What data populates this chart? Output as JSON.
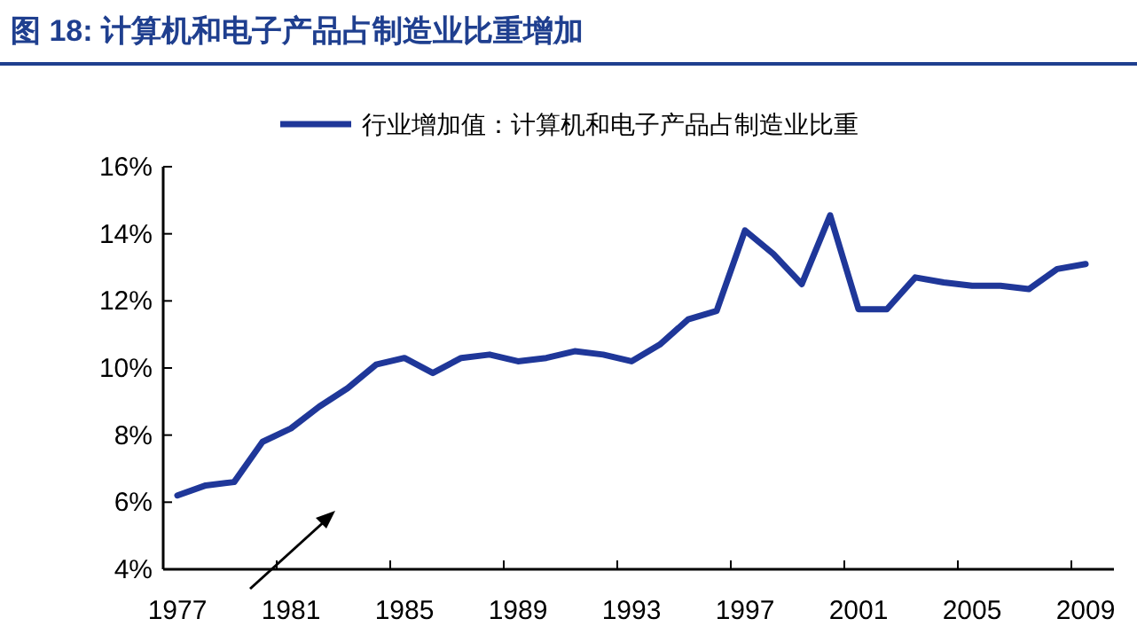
{
  "chart_data": {
    "type": "line",
    "title": "图 18:  计算机和电子产品占制造业比重增加",
    "categories": [
      "1977",
      null,
      null,
      null,
      "1981",
      null,
      null,
      null,
      "1985",
      null,
      null,
      null,
      "1989",
      null,
      null,
      null,
      "1993",
      null,
      null,
      null,
      "1997",
      null,
      null,
      null,
      "2001",
      null,
      null,
      null,
      "2005",
      null,
      null,
      null,
      "2009"
    ],
    "series": [
      {
        "name": "行业增加值：计算机和电子产品占制造业比重",
        "color": "#1f3799",
        "values": [
          6.2,
          6.5,
          6.6,
          7.8,
          8.2,
          8.85,
          9.4,
          10.1,
          10.3,
          9.85,
          10.3,
          10.4,
          10.2,
          10.3,
          10.5,
          10.4,
          10.2,
          10.7,
          11.45,
          11.7,
          14.1,
          13.4,
          12.5,
          14.55,
          11.75,
          11.75,
          12.7,
          12.55,
          12.45,
          12.45,
          12.35,
          12.95,
          13.1
        ]
      }
    ],
    "ylim": [
      4,
      16
    ],
    "yticks": [
      {
        "value": 4,
        "label": "4%"
      },
      {
        "value": 6,
        "label": "6%"
      },
      {
        "value": 8,
        "label": "8%"
      },
      {
        "value": 10,
        "label": "10%"
      },
      {
        "value": 12,
        "label": "12%"
      },
      {
        "value": 14,
        "label": "14%"
      },
      {
        "value": 16,
        "label": "16%"
      }
    ],
    "grid": false,
    "legend": "top",
    "marker": "none",
    "line_style": "solid"
  }
}
